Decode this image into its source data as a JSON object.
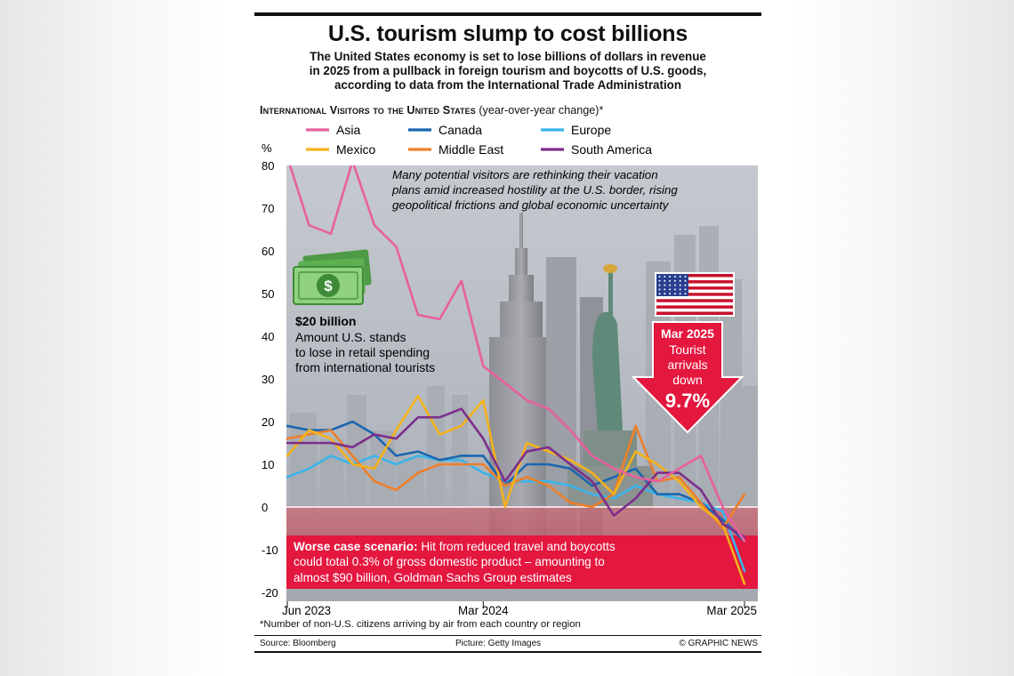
{
  "title": "U.S. tourism slump to cost billions",
  "subtitle": [
    "The United States economy is set to lose billions of dollars in revenue",
    "in 2025 from a pullback in foreign tourism and boycotts of U.S. goods,",
    "according to data from the International Trade Administration"
  ],
  "chart_heading": "International Visitors to the United States",
  "chart_heading_note": "(year-over-year change)*",
  "colors": {
    "Asia": "#e8609e",
    "Canada": "#1a66b0",
    "Europe": "#3ab5ea",
    "Mexico": "#f5b21a",
    "Middle East": "#ee7f2a",
    "South America": "#7d2e8c",
    "banner": "#e4173f"
  },
  "annotations": {
    "hostility": [
      "Many potential visitors are rethinking their vacation",
      "plans amid increased hostility at the U.S. border, rising",
      "geopolitical frictions and global economic uncertainty"
    ],
    "billion_value": "$20 billion",
    "billion_text": [
      "Amount U.S. stands",
      "to lose in retail spending",
      "from international tourists"
    ],
    "dollar_icon": "money-stack-icon",
    "flag_icon": "us-flag-icon",
    "arrow_date": "Mar 2025",
    "arrow_text": [
      "Tourist",
      "arrivals",
      "down"
    ],
    "arrow_value": "9.7%",
    "worse_bold": "Worse case scenario:",
    "worse_text": [
      " Hit from reduced travel and boycotts",
      "could total 0.3% of gross domestic product – amounting to",
      "almost $90 billion, Goldman Sachs Group estimates"
    ]
  },
  "footnote": "*Number of non-U.S. citizens arriving by air from each country or region",
  "source": "Source: Bloomberg",
  "picture": "Picture: Getty Images",
  "credit": "© GRAPHIC NEWS",
  "chart_data": {
    "type": "line",
    "ylabel": "%",
    "ylim": [
      -22,
      83
    ],
    "yticks": [
      80,
      70,
      60,
      50,
      40,
      30,
      20,
      10,
      0,
      -10,
      -20
    ],
    "x": [
      "Jun 2023",
      "Jul 2023",
      "Aug 2023",
      "Sep 2023",
      "Oct 2023",
      "Nov 2023",
      "Dec 2023",
      "Jan 2024",
      "Feb 2024",
      "Mar 2024",
      "Apr 2024",
      "May 2024",
      "Jun 2024",
      "Jul 2024",
      "Aug 2024",
      "Sep 2024",
      "Oct 2024",
      "Nov 2024",
      "Dec 2024",
      "Jan 2025",
      "Feb 2025",
      "Mar 2025"
    ],
    "xtick_labels": [
      "Jun 2023",
      "Mar 2024",
      "Mar 2025"
    ],
    "xtick_index": [
      0,
      9,
      21
    ],
    "series": [
      {
        "name": "Asia",
        "values": [
          82,
          66,
          64,
          81,
          66,
          61,
          45,
          44,
          53,
          33,
          29,
          25,
          23,
          18,
          12,
          9,
          7,
          6,
          9,
          12,
          0,
          -8
        ]
      },
      {
        "name": "Canada",
        "values": [
          19,
          18,
          18,
          20,
          17,
          12,
          13,
          11,
          12,
          12,
          5,
          10,
          10,
          9,
          5,
          7,
          9,
          3,
          3,
          1,
          -3,
          -8
        ]
      },
      {
        "name": "Europe",
        "values": [
          7,
          9,
          12,
          10,
          12,
          10,
          12,
          11,
          11,
          8,
          6,
          6,
          6,
          5,
          3,
          2,
          5,
          3,
          2,
          1,
          -1,
          -15
        ]
      },
      {
        "name": "Mexico",
        "values": [
          12,
          18,
          16,
          10,
          9,
          18,
          26,
          17,
          19,
          25,
          0,
          15,
          13,
          11,
          8,
          3,
          13,
          10,
          6,
          0,
          -4,
          -18
        ]
      },
      {
        "name": "Middle East",
        "values": [
          16,
          17,
          18,
          12,
          6,
          4,
          8,
          10,
          10,
          10,
          5,
          7,
          5,
          1,
          0,
          3,
          19,
          6,
          7,
          1,
          -5,
          3
        ]
      },
      {
        "name": "South America",
        "values": [
          15,
          15,
          15,
          14,
          17,
          16,
          21,
          21,
          23,
          16,
          6,
          13,
          14,
          10,
          6,
          -2,
          2,
          8,
          8,
          4,
          -4,
          -7
        ]
      }
    ]
  }
}
